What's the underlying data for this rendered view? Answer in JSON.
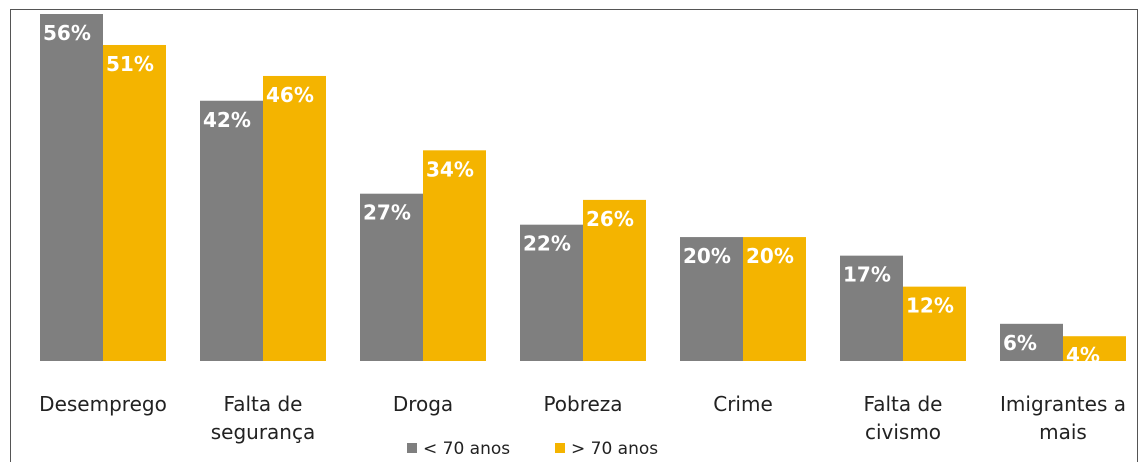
{
  "chart_data": {
    "type": "bar",
    "categories": [
      [
        "Desemprego"
      ],
      [
        "Falta de",
        "segurança"
      ],
      [
        "Droga"
      ],
      [
        "Pobreza"
      ],
      [
        "Crime"
      ],
      [
        "Falta de",
        "civismo"
      ],
      [
        "Imigrantes a",
        "mais"
      ]
    ],
    "series": [
      {
        "name": "< 70 anos",
        "color": "#7f7f7f",
        "values": [
          56,
          42,
          27,
          22,
          20,
          17,
          6
        ],
        "labels": [
          "56%",
          "42%",
          "27%",
          "22%",
          "20%",
          "17%",
          "6%"
        ]
      },
      {
        "name": "> 70 anos",
        "color": "#f4b400",
        "values": [
          51,
          46,
          34,
          26,
          20,
          12,
          4
        ],
        "labels": [
          "51%",
          "46%",
          "34%",
          "26%",
          "20%",
          "12%",
          "4%"
        ]
      }
    ],
    "ylim": [
      0,
      56
    ],
    "grid": false,
    "legend_position": "bottom"
  }
}
